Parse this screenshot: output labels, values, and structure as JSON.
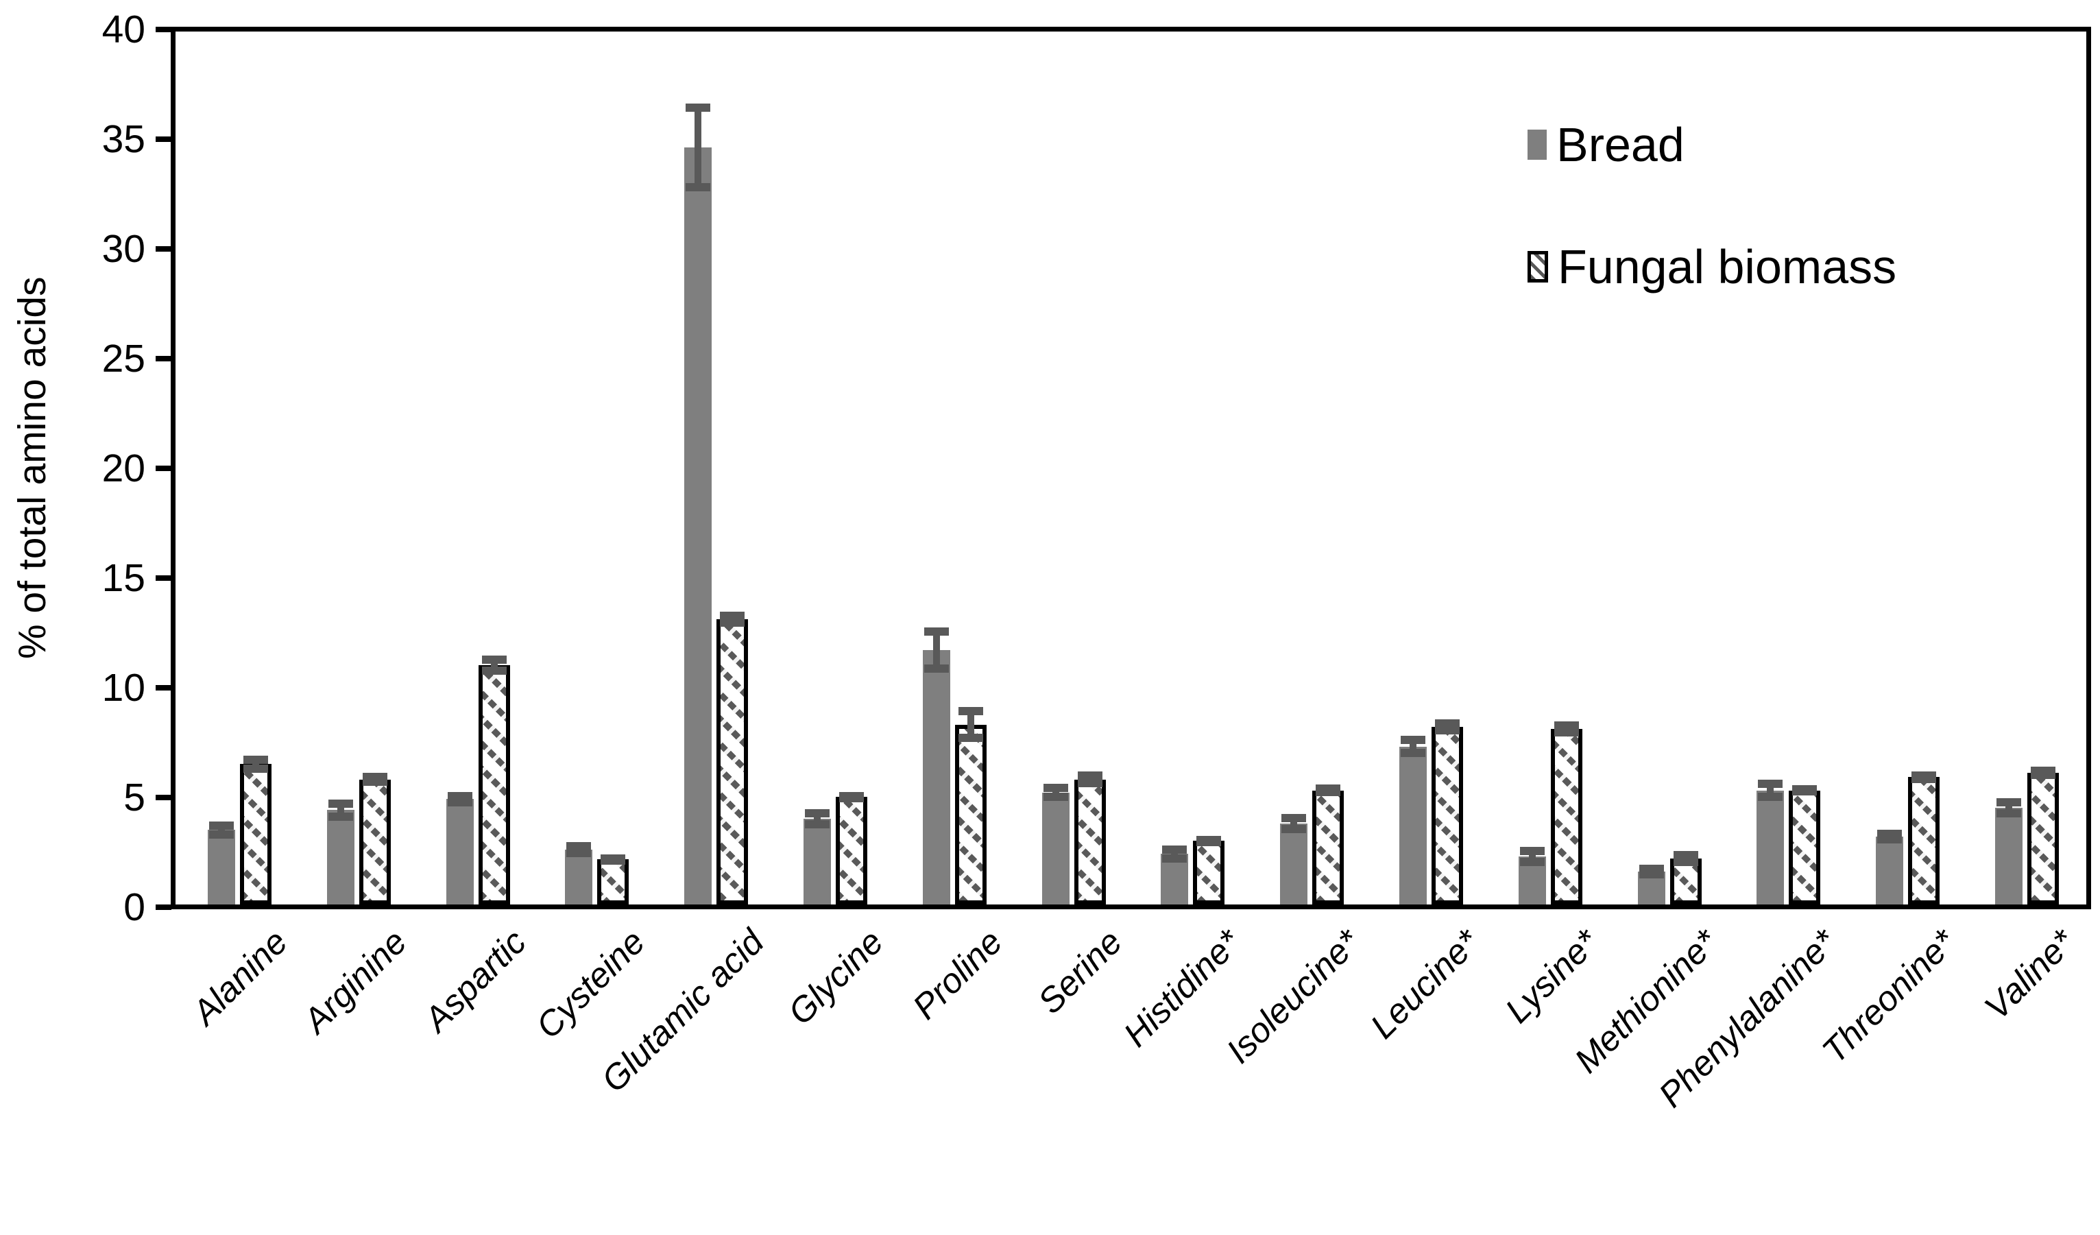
{
  "chart_data": {
    "type": "bar",
    "title": "",
    "ylabel": "% of total amino acids",
    "ylim": [
      0,
      40
    ],
    "ytick_step": 5,
    "ytick_labels": [
      "0",
      "5",
      "10",
      "15",
      "20",
      "25",
      "30",
      "35",
      "40"
    ],
    "grid": false,
    "legend_position": "top-right-inside",
    "categories": [
      "Alanine",
      "Arginine",
      "Aspartic",
      "Cysteine",
      "Glutamic acid",
      "Glycine",
      "Proline",
      "Serine",
      "Histidine*",
      "Isoleucine*",
      "Leucine*",
      "Lysine*",
      "Methionine*",
      "Phenylalanine*",
      "Threonine*",
      "Valine*"
    ],
    "series": [
      {
        "name": "Bread",
        "style": "solid",
        "fill_color": "#7F7F7F",
        "values": [
          3.4,
          4.3,
          4.8,
          2.5,
          34.5,
          3.9,
          11.6,
          5.1,
          2.3,
          3.7,
          7.2,
          2.2,
          1.5,
          5.2,
          3.1,
          4.4
        ],
        "errors": [
          0.2,
          0.3,
          0.15,
          0.15,
          1.8,
          0.25,
          0.85,
          0.2,
          0.2,
          0.25,
          0.3,
          0.25,
          0.12,
          0.3,
          0.12,
          0.25
        ]
      },
      {
        "name": "Fungal biomass",
        "style": "hatched",
        "fill_color": "#FFFFFF",
        "hatch_color": "#595959",
        "border_color": "#000000",
        "values": [
          6.4,
          5.7,
          10.9,
          2.05,
          13.0,
          4.9,
          8.2,
          5.7,
          2.9,
          5.2,
          8.1,
          8.0,
          2.1,
          5.2,
          5.8,
          6.0
        ],
        "errors": [
          0.2,
          0.1,
          0.25,
          0.05,
          0.15,
          0.05,
          0.6,
          0.16,
          0.05,
          0.08,
          0.15,
          0.15,
          0.15,
          0.05,
          0.08,
          0.08
        ]
      }
    ],
    "error_bar_color": "#595959",
    "axis_color": "#000000"
  }
}
